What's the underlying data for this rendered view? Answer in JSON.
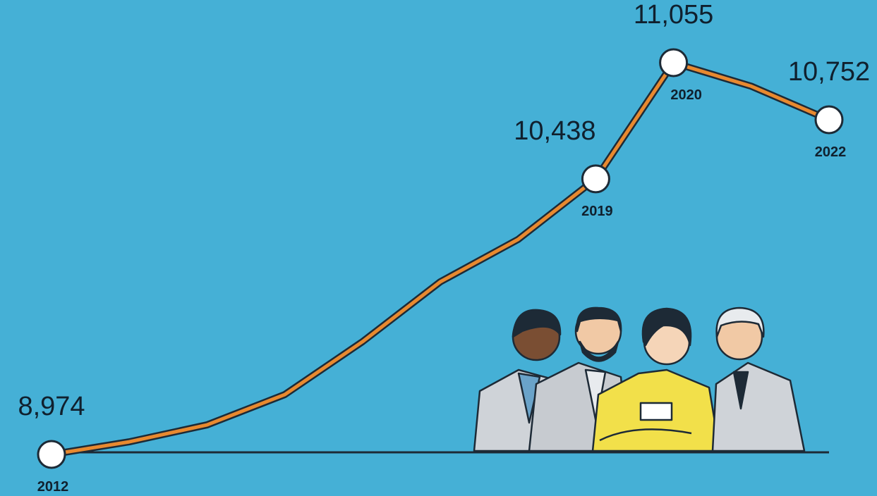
{
  "chart_data": {
    "type": "line",
    "categories": [
      "2012",
      null,
      null,
      null,
      null,
      null,
      null,
      "2019",
      "2020",
      null,
      "2022"
    ],
    "series": [
      {
        "color": "#e8892f",
        "values": [
          8974,
          9041,
          9131,
          9292,
          9573,
          9891,
          10116,
          10438,
          11055,
          10930,
          10752
        ],
        "value_labels": [
          "8,974",
          null,
          null,
          null,
          null,
          null,
          null,
          "10,438",
          "11,055",
          null,
          "10,752"
        ]
      }
    ]
  }
}
